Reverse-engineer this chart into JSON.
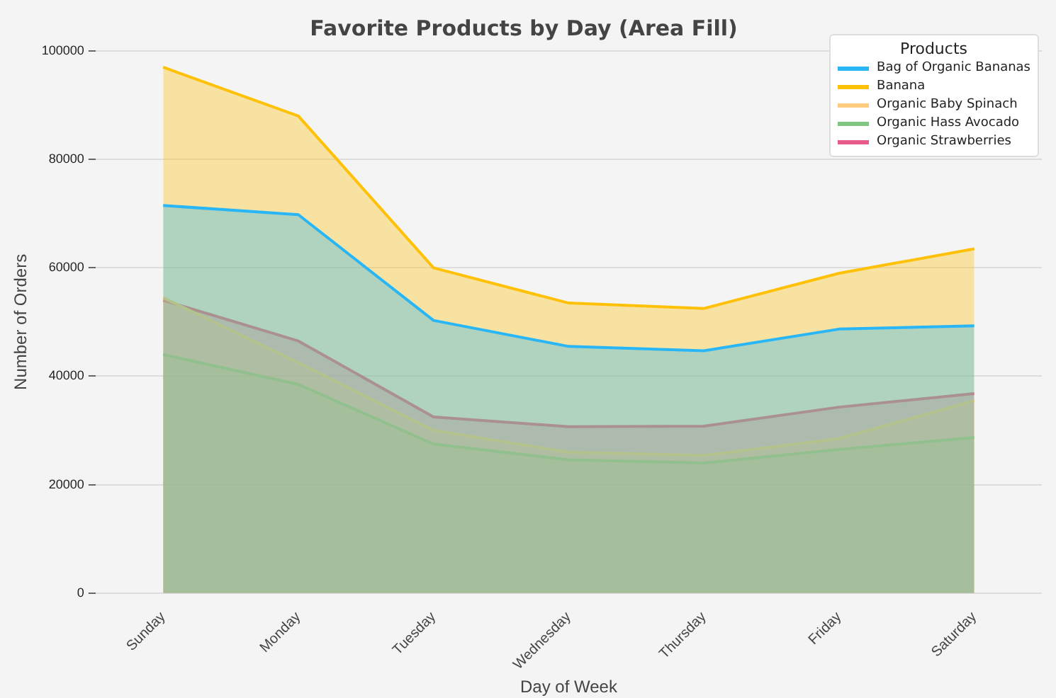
{
  "chart_data": {
    "type": "area",
    "title": "Favorite Products by Day (Area Fill)",
    "xlabel": "Day of Week",
    "ylabel": "Number of Orders",
    "legend_title": "Products",
    "categories": [
      "Sunday",
      "Monday",
      "Tuesday",
      "Wednesday",
      "Thursday",
      "Friday",
      "Saturday"
    ],
    "series": [
      {
        "name": "Bag of Organic Bananas",
        "color": "#29b6f6",
        "values": [
          71500,
          69800,
          50300,
          45500,
          44700,
          48700,
          49300
        ]
      },
      {
        "name": "Banana",
        "color": "#ffc107",
        "values": [
          97000,
          88000,
          60000,
          53500,
          52500,
          59000,
          63500
        ]
      },
      {
        "name": "Organic Baby Spinach",
        "color": "#ffcc80",
        "values": [
          54500,
          42500,
          30000,
          26000,
          25400,
          28500,
          35500
        ]
      },
      {
        "name": "Organic Hass Avocado",
        "color": "#81c784",
        "values": [
          44000,
          38500,
          27500,
          24600,
          24000,
          26500,
          28700
        ]
      },
      {
        "name": "Organic Strawberries",
        "color": "#e85a88",
        "values": [
          54000,
          46500,
          32500,
          30700,
          30800,
          34300,
          36800
        ]
      }
    ],
    "ylim": [
      0,
      100000
    ],
    "yticks": [
      0,
      20000,
      40000,
      60000,
      80000,
      100000
    ],
    "grid": "y",
    "legend": "top right"
  }
}
